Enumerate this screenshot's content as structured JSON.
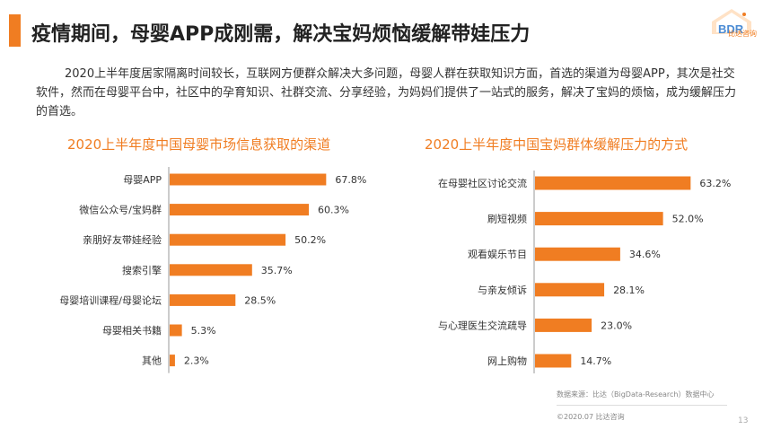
{
  "header": {
    "title": "疫情期间，母婴APP成刚需，解决宝妈烦恼缓解带娃压力",
    "logo_text": "比达咨询",
    "logo_mark": "BDR"
  },
  "intro": "2020上半年度居家隔离时间较长，互联网方便群众解决大多问题，母婴人群在获取知识方面，首选的渠道为母婴APP，其次是社交软件，然而在母婴平台中，社区中的孕育知识、社群交流、分享经验，为妈妈们提供了一站式的服务，解决了宝妈的烦恼，成为缓解压力的首选。",
  "chart_data": [
    {
      "type": "bar",
      "orientation": "horizontal",
      "title": "2020上半年度中国母婴市场信息获取的渠道",
      "categories": [
        "母婴APP",
        "微信公众号/宝妈群",
        "亲朋好友带娃经验",
        "搜索引擎",
        "母婴培训课程/母婴论坛",
        "母婴相关书籍",
        "其他"
      ],
      "values": [
        67.8,
        60.3,
        50.2,
        35.7,
        28.5,
        5.3,
        2.3
      ],
      "labels": [
        "67.8%",
        "60.3%",
        "50.2%",
        "35.7%",
        "28.5%",
        "5.3%",
        "2.3%"
      ],
      "unit": "%",
      "xlim": [
        0,
        70
      ],
      "color": "#f07d22"
    },
    {
      "type": "bar",
      "orientation": "horizontal",
      "title": "2020上半年度中国宝妈群体缓解压力的方式",
      "categories": [
        "在母婴社区讨论交流",
        "刷短视频",
        "观看娱乐节目",
        "与亲友倾诉",
        "与心理医生交流疏导",
        "网上购物"
      ],
      "values": [
        63.2,
        52.0,
        34.6,
        28.1,
        23.0,
        14.7
      ],
      "labels": [
        "63.2%",
        "52.0%",
        "34.6%",
        "28.1%",
        "23.0%",
        "14.7%"
      ],
      "unit": "%",
      "xlim": [
        0,
        70
      ],
      "color": "#f07d22"
    }
  ],
  "footer": {
    "source": "数据来源：比达（BigData-Research）数据中心",
    "copyright": "©2020.07 比达咨询",
    "page_number": "13"
  },
  "colors": {
    "accent": "#f07d22"
  }
}
